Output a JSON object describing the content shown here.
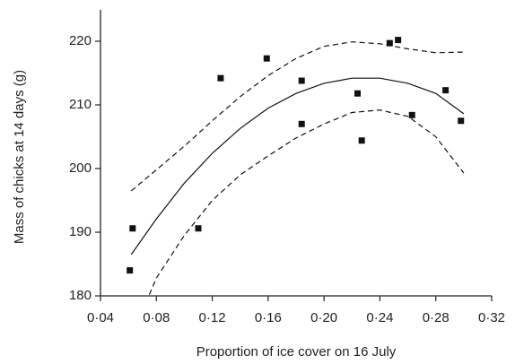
{
  "chart_data": {
    "type": "scatter",
    "x_label": "Proportion of ice cover on 16 July",
    "y_label": "Mass of chicks at 14 days (g)",
    "xlim": [
      0.04,
      0.32
    ],
    "ylim": [
      180,
      225
    ],
    "xticks": [
      {
        "value": 0.04,
        "label": "0·04"
      },
      {
        "value": 0.08,
        "label": "0·08"
      },
      {
        "value": 0.12,
        "label": "0·12"
      },
      {
        "value": 0.16,
        "label": "0·16"
      },
      {
        "value": 0.2,
        "label": "0·20"
      },
      {
        "value": 0.24,
        "label": "0·24"
      },
      {
        "value": 0.28,
        "label": "0·28"
      },
      {
        "value": 0.32,
        "label": "0·32"
      }
    ],
    "yticks": [
      180,
      190,
      200,
      210,
      220
    ],
    "grid": false,
    "series": [
      {
        "style": "markers",
        "color": "#111111",
        "x": [
          0.061,
          0.063,
          0.11,
          0.126,
          0.159,
          0.184,
          0.184,
          0.224,
          0.227,
          0.247,
          0.253,
          0.263,
          0.287,
          0.298
        ],
        "values": [
          184.0,
          190.6,
          190.6,
          214.2,
          217.3,
          213.8,
          207.0,
          211.8,
          204.4,
          219.7,
          220.2,
          208.4,
          212.3,
          207.5
        ]
      },
      {
        "style": "solid",
        "color": "#111111",
        "x": [
          0.062,
          0.08,
          0.1,
          0.12,
          0.14,
          0.16,
          0.18,
          0.2,
          0.22,
          0.24,
          0.26,
          0.28,
          0.3
        ],
        "values": [
          186.5,
          192.1,
          197.7,
          202.4,
          206.3,
          209.5,
          211.8,
          213.4,
          214.2,
          214.2,
          213.4,
          211.8,
          208.6
        ]
      },
      {
        "style": "dashed",
        "color": "#111111",
        "x": [
          0.062,
          0.08,
          0.1,
          0.12,
          0.14,
          0.16,
          0.18,
          0.2,
          0.22,
          0.24,
          0.26,
          0.28,
          0.3
        ],
        "values": [
          196.5,
          199.8,
          203.5,
          207.5,
          211.3,
          214.6,
          217.3,
          219.2,
          219.9,
          219.6,
          218.8,
          218.2,
          218.3
        ]
      },
      {
        "style": "dashed",
        "color": "#111111",
        "x": [
          0.075,
          0.08,
          0.1,
          0.12,
          0.14,
          0.16,
          0.18,
          0.2,
          0.22,
          0.24,
          0.26,
          0.28,
          0.3
        ],
        "values": [
          180.2,
          182.8,
          189.5,
          195.0,
          199.0,
          202.0,
          204.8,
          207.0,
          208.8,
          209.2,
          208.2,
          205.0,
          199.3
        ]
      }
    ]
  }
}
